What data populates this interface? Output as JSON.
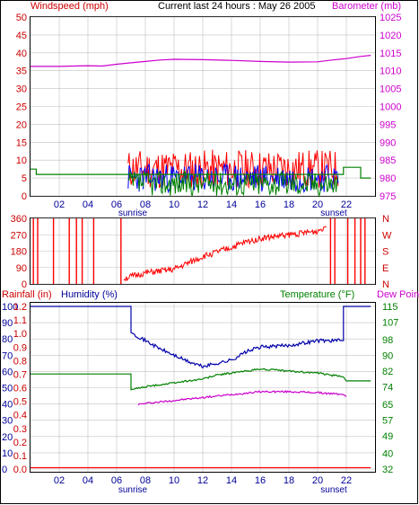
{
  "header": {
    "windspeed_label": "Windspeed (mph)",
    "title": "Current last 24 hours : May 26 2005",
    "barometer_label": "Barometer (mb)"
  },
  "bottom_header": {
    "rainfall_label": "Rainfall (in)",
    "humidity_label": "Humidity (%)",
    "temperature_label": "Temperature (°F)",
    "dewpoint_label": "Dew Point"
  },
  "x_axis": {
    "ticks": [
      "02",
      "04",
      "06",
      "08",
      "10",
      "12",
      "14",
      "16",
      "18",
      "20",
      "22"
    ],
    "sunrise_label": "sunrise",
    "sunset_label": "sunset"
  },
  "colors": {
    "frame": "#000000",
    "grid": "#c0c0c0",
    "wind": "#ff0000",
    "wind_avg": "#0000ff",
    "wind_gust": "#008000",
    "barometer": "#cc00cc",
    "direction": "#ff0000",
    "humidity": "#0000aa",
    "temperature": "#008000",
    "dewpoint": "#cc00cc",
    "rain": "#ff0000"
  },
  "chart_data": [
    {
      "type": "line",
      "name": "wind-barometer",
      "y_left": {
        "ticks": [
          "50",
          "45",
          "40",
          "35",
          "30",
          "25",
          "20",
          "15",
          "10",
          "5",
          "0"
        ],
        "ylim": [
          0,
          50
        ]
      },
      "y_right": {
        "ticks": [
          "1025",
          "1020",
          "1015",
          "1010",
          "1005",
          "1000",
          "995",
          "990",
          "985",
          "980",
          "975"
        ],
        "ylim": [
          975,
          1025
        ]
      },
      "series": [
        {
          "key": "barometer",
          "axis": "right",
          "x": [
            0,
            2,
            4,
            5,
            6,
            7,
            8,
            9,
            10,
            12,
            14,
            16,
            18,
            20,
            21,
            22,
            23,
            23.7
          ],
          "values": [
            1011.2,
            1011.2,
            1011.4,
            1011.3,
            1011.8,
            1012.2,
            1012.6,
            1013.0,
            1013.2,
            1013.1,
            1012.9,
            1012.6,
            1012.4,
            1012.5,
            1013.0,
            1013.4,
            1014.0,
            1014.3
          ]
        },
        {
          "key": "wind_gust",
          "axis": "left",
          "x": [
            0,
            0.4,
            0.4,
            21.8,
            21.8,
            23,
            23,
            23.7
          ],
          "values": [
            7.5,
            7.5,
            6,
            6,
            8,
            8,
            5,
            5
          ]
        }
      ]
    },
    {
      "type": "line",
      "name": "wind-direction",
      "y_left": {
        "ticks": [
          "360",
          "270",
          "180",
          "90",
          "0"
        ],
        "ylim": [
          0,
          360
        ]
      },
      "y_right": {
        "ticks": [
          "N",
          "W",
          "S",
          "E",
          "N"
        ]
      },
      "series": [
        {
          "key": "direction",
          "x": [
            6.5,
            8,
            10,
            12,
            14,
            15,
            16,
            18,
            20,
            20.6
          ],
          "values": [
            30,
            60,
            80,
            150,
            200,
            230,
            250,
            270,
            290,
            320
          ]
        }
      ]
    },
    {
      "type": "line",
      "name": "humidity-temperature",
      "y_left_outer": {
        "ticks": [
          "1.2",
          "1.1",
          "1.0",
          "0.9",
          "0.8",
          "0.7",
          "0.6",
          "0.5",
          "0.4",
          "0.3",
          "0.2",
          "0.1",
          "0.0"
        ],
        "ylim": [
          0,
          1.2
        ]
      },
      "y_left_inner": {
        "ticks": [
          "100",
          "90",
          "80",
          "70",
          "60",
          "50",
          "40",
          "30",
          "20",
          "10",
          "0"
        ],
        "ylim": [
          0,
          100
        ]
      },
      "y_right": {
        "ticks": [
          "115",
          "107",
          "98",
          "90",
          "82",
          "74",
          "65",
          "57",
          "49",
          "40",
          "32"
        ],
        "ylim": [
          32,
          115
        ]
      },
      "series": [
        {
          "key": "humidity",
          "axis": "humidity",
          "x": [
            0,
            7,
            7,
            9,
            11,
            12,
            13,
            14,
            15,
            16,
            18,
            20,
            21.8,
            21.8,
            23.7
          ],
          "values": [
            100,
            100,
            84,
            74,
            66,
            63,
            65,
            67,
            72,
            75,
            76,
            79,
            79,
            100,
            100
          ]
        },
        {
          "key": "temperature",
          "axis": "temperature",
          "x": [
            0,
            7,
            7,
            8,
            10,
            12,
            13,
            14,
            15,
            16,
            18,
            20,
            21.8,
            22,
            23.7
          ],
          "values": [
            80.5,
            80.5,
            72.5,
            74,
            76,
            78,
            80,
            81,
            82,
            83,
            82,
            81,
            79,
            77,
            77
          ]
        },
        {
          "key": "dewpoint",
          "axis": "temperature",
          "x": [
            7.5,
            8,
            10,
            12,
            14,
            16,
            18,
            20,
            21.8,
            22
          ],
          "values": [
            65,
            65.5,
            67,
            68.5,
            70,
            71.5,
            71.5,
            71,
            70,
            69
          ]
        },
        {
          "key": "rain",
          "axis": "rain",
          "x": [
            0,
            23.7
          ],
          "values": [
            0.01,
            0.01
          ]
        }
      ]
    }
  ]
}
